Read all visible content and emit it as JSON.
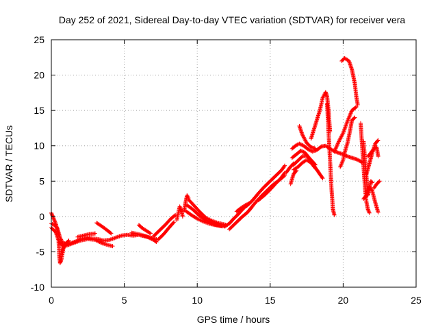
{
  "chart_data": {
    "type": "scatter",
    "title": "Day 252 of 2021, Sidereal Day-to-day VTEC variation (SDTVAR) for receiver vera",
    "xlabel": "GPS time / hours",
    "ylabel": "SDTVAR / TECUs",
    "xlim": [
      0,
      25
    ],
    "ylim": [
      -10,
      25
    ],
    "xticks": [
      0,
      5,
      10,
      15,
      20,
      25
    ],
    "yticks": [
      -10,
      -5,
      0,
      5,
      10,
      15,
      20,
      25
    ],
    "grid": true,
    "marker": "+",
    "series": [
      {
        "name": "SDTVAR",
        "color": "#ff0000",
        "tracks": [
          {
            "x": [
              0.0,
              0.2,
              0.4,
              0.6,
              0.8,
              1.0,
              1.3,
              1.7,
              2.0,
              2.4,
              2.8,
              3.2,
              3.6,
              4.0,
              4.4,
              4.8,
              5.2,
              5.6,
              6.0,
              6.4,
              6.8,
              7.2
            ],
            "y": [
              -1.0,
              -1.2,
              -1.6,
              -3.0,
              -3.8,
              -3.9,
              -3.8,
              -3.5,
              -3.2,
              -3.0,
              -3.1,
              -3.2,
              -3.4,
              -3.3,
              -3.0,
              -2.7,
              -2.6,
              -2.7,
              -2.6,
              -2.8,
              -3.0,
              -3.2
            ]
          },
          {
            "x": [
              0.0,
              0.3,
              0.5,
              0.7,
              0.9,
              1.2,
              1.6,
              2.0,
              2.5,
              3.0,
              3.5,
              4.0,
              4.2
            ],
            "y": [
              -1.6,
              -2.2,
              -3.4,
              -4.0,
              -4.2,
              -4.0,
              -3.7,
              -3.4,
              -3.2,
              -3.3,
              -3.8,
              -4.1,
              -4.2
            ]
          },
          {
            "x": [
              0.0,
              0.1,
              0.2,
              0.3,
              0.4,
              0.5
            ],
            "y": [
              0.5,
              0.0,
              -0.5,
              -1.0,
              -1.8,
              -2.6
            ]
          },
          {
            "x": [
              0.5,
              0.55,
              0.6,
              0.7,
              0.8,
              0.9
            ],
            "y": [
              -3.5,
              -5.5,
              -6.6,
              -6.0,
              -4.8,
              -3.8
            ]
          },
          {
            "x": [
              0.7,
              0.9,
              1.2
            ],
            "y": [
              -5.0,
              -4.0,
              -3.4
            ]
          },
          {
            "x": [
              1.8,
              2.2,
              2.6,
              3.0
            ],
            "y": [
              -2.9,
              -2.7,
              -2.5,
              -2.4
            ]
          },
          {
            "x": [
              3.1,
              3.4,
              3.8,
              4.1
            ],
            "y": [
              -0.9,
              -1.3,
              -1.9,
              -2.4
            ]
          },
          {
            "x": [
              5.5,
              6.0,
              6.5,
              7.0,
              7.2
            ],
            "y": [
              -2.3,
              -2.5,
              -2.8,
              -3.3,
              -3.6
            ]
          },
          {
            "x": [
              6.0,
              6.2,
              6.5,
              6.8
            ],
            "y": [
              -1.2,
              -1.6,
              -2.0,
              -2.4
            ]
          },
          {
            "x": [
              7.0,
              7.4,
              7.8,
              8.2,
              8.5
            ],
            "y": [
              -2.8,
              -2.0,
              -1.2,
              -0.3,
              0.2
            ]
          },
          {
            "x": [
              7.3,
              7.7,
              8.1,
              8.4
            ],
            "y": [
              -3.3,
              -2.5,
              -1.5,
              -0.8
            ]
          },
          {
            "x": [
              8.6,
              8.7,
              8.8,
              8.9,
              9.0
            ],
            "y": [
              -0.5,
              0.5,
              1.4,
              1.0,
              0.0
            ]
          },
          {
            "x": [
              9.1,
              9.2,
              9.3,
              9.4
            ],
            "y": [
              0.8,
              2.0,
              3.0,
              2.6
            ]
          },
          {
            "x": [
              9.4,
              9.8,
              10.2,
              10.6,
              11.0,
              11.4,
              11.8,
              12.0
            ],
            "y": [
              2.4,
              1.5,
              0.6,
              -0.2,
              -0.6,
              -0.9,
              -1.1,
              -1.2
            ]
          },
          {
            "x": [
              9.3,
              9.7,
              10.1,
              10.5,
              10.9,
              11.3,
              11.7
            ],
            "y": [
              1.6,
              1.0,
              0.2,
              -0.4,
              -0.9,
              -1.2,
              -1.4
            ]
          },
          {
            "x": [
              9.2,
              9.6,
              10.0,
              10.4,
              10.8,
              11.2,
              11.6,
              11.9
            ],
            "y": [
              0.8,
              0.2,
              -0.3,
              -0.7,
              -1.0,
              -1.2,
              -1.3,
              -1.4
            ]
          },
          {
            "x": [
              11.9,
              12.2,
              12.5,
              12.8,
              13.1,
              13.4
            ],
            "y": [
              -1.4,
              -1.0,
              -0.3,
              0.3,
              1.0,
              1.6
            ]
          },
          {
            "x": [
              12.2,
              12.5,
              12.8,
              13.1,
              13.4,
              13.7
            ],
            "y": [
              -1.8,
              -1.2,
              -0.6,
              0.0,
              0.5,
              1.2
            ]
          },
          {
            "x": [
              12.7,
              13.0,
              13.3,
              13.6
            ],
            "y": [
              0.7,
              1.2,
              1.6,
              1.9
            ]
          },
          {
            "x": [
              13.4,
              13.8,
              14.2,
              14.6,
              15.0,
              15.4,
              15.8,
              16.0
            ],
            "y": [
              1.5,
              2.3,
              3.3,
              4.2,
              5.0,
              5.8,
              6.6,
              7.2
            ]
          },
          {
            "x": [
              13.6,
              14.0,
              14.4,
              14.8,
              15.2,
              15.6,
              16.0
            ],
            "y": [
              1.0,
              2.0,
              2.9,
              3.7,
              4.5,
              5.1,
              5.8
            ]
          },
          {
            "x": [
              14.2,
              14.6,
              15.0,
              15.4,
              15.8,
              16.0
            ],
            "y": [
              2.3,
              3.0,
              3.8,
              4.7,
              5.6,
              6.2
            ]
          },
          {
            "x": [
              16.1,
              16.3,
              16.6
            ],
            "y": [
              6.2,
              6.8,
              7.5
            ]
          },
          {
            "x": [
              16.4,
              16.5,
              16.6,
              16.8
            ],
            "y": [
              4.6,
              5.3,
              6.0,
              6.5
            ]
          },
          {
            "x": [
              16.5,
              16.8,
              17.0,
              17.3,
              17.6,
              17.9,
              18.2,
              18.5,
              18.8,
              19.1,
              19.4,
              19.7,
              20.0,
              20.3,
              20.6,
              20.9,
              21.2,
              21.3
            ],
            "y": [
              9.6,
              10.1,
              10.3,
              10.0,
              9.5,
              9.2,
              9.4,
              9.9,
              10.0,
              9.6,
              9.2,
              9.0,
              8.8,
              8.5,
              8.3,
              8.1,
              7.8,
              7.6
            ]
          },
          {
            "x": [
              16.5,
              16.8,
              17.1,
              17.4,
              17.7,
              18.0,
              18.3,
              18.6
            ],
            "y": [
              8.3,
              8.8,
              9.3,
              9.0,
              8.2,
              7.2,
              6.3,
              5.4
            ]
          },
          {
            "x": [
              16.6,
              16.9,
              17.2,
              17.5,
              17.8,
              18.1
            ],
            "y": [
              7.3,
              7.9,
              8.5,
              8.6,
              8.0,
              7.3
            ]
          },
          {
            "x": [
              16.6,
              16.9,
              17.2,
              17.5,
              17.8,
              18.1
            ],
            "y": [
              6.6,
              7.0,
              7.6,
              8.0,
              7.6,
              6.8
            ]
          },
          {
            "x": [
              17.0,
              17.2,
              17.5,
              17.8,
              18.1
            ],
            "y": [
              12.8,
              11.6,
              10.4,
              9.8,
              9.6
            ]
          },
          {
            "x": [
              17.8,
              18.1,
              18.4,
              18.6,
              18.8,
              18.9,
              19.0,
              19.1
            ],
            "y": [
              11.0,
              13.0,
              15.0,
              16.8,
              17.6,
              17.0,
              15.0,
              12.0
            ]
          },
          {
            "x": [
              18.9,
              19.0,
              19.1,
              19.2,
              19.3,
              19.4
            ],
            "y": [
              16.0,
              12.0,
              8.0,
              4.0,
              1.0,
              0.2
            ]
          },
          {
            "x": [
              19.4,
              19.7,
              20.0,
              20.3,
              20.6,
              20.9
            ],
            "y": [
              9.2,
              10.6,
              11.8,
              13.5,
              15.0,
              15.5
            ]
          },
          {
            "x": [
              19.8,
              20.0,
              20.1,
              20.3,
              20.5,
              20.6,
              20.8
            ],
            "y": [
              7.0,
              8.0,
              9.0,
              10.4,
              12.4,
              13.6,
              14.0
            ]
          },
          {
            "x": [
              19.9,
              20.1,
              20.4,
              20.6,
              20.8,
              20.9,
              21.0
            ],
            "y": [
              22.0,
              22.4,
              22.0,
              20.8,
              18.8,
              17.0,
              15.8
            ]
          },
          {
            "x": [
              21.2,
              21.3,
              21.4,
              21.5,
              21.6,
              21.7,
              21.8
            ],
            "y": [
              13.2,
              10.0,
              7.0,
              4.0,
              2.0,
              1.0,
              0.5
            ]
          },
          {
            "x": [
              21.4,
              21.5,
              21.6,
              21.7,
              21.8,
              21.9,
              22.0
            ],
            "y": [
              10.6,
              8.0,
              5.5,
              3.0,
              4.0,
              5.0,
              4.8
            ]
          },
          {
            "x": [
              21.4,
              21.6,
              21.8,
              22.0,
              22.2,
              22.4
            ],
            "y": [
              2.5,
              3.0,
              4.2,
              3.6,
              2.0,
              0.6
            ]
          },
          {
            "x": [
              21.6,
              21.8,
              22.0,
              22.2,
              22.4
            ],
            "y": [
              6.0,
              7.5,
              9.0,
              10.3,
              10.8
            ]
          },
          {
            "x": [
              21.7,
              21.9,
              22.1,
              22.3,
              22.4
            ],
            "y": [
              8.5,
              9.0,
              9.6,
              9.8,
              8.5
            ]
          },
          {
            "x": [
              22.1,
              22.3,
              22.5
            ],
            "y": [
              4.0,
              4.6,
              5.0
            ]
          }
        ]
      }
    ]
  }
}
